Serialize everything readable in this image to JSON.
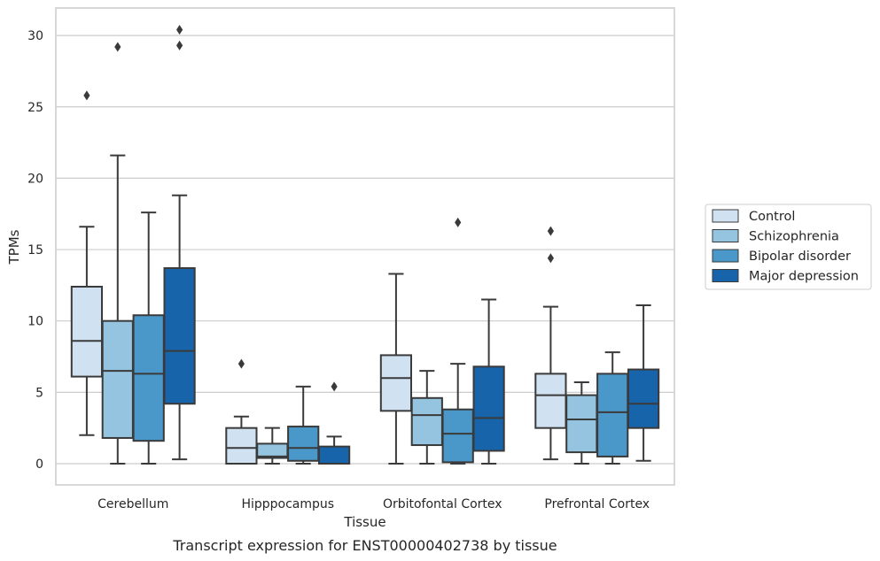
{
  "chart_data": {
    "type": "box",
    "xlabel": "Tissue",
    "ylabel": "TPMs",
    "caption": "Transcript expression for ENST00000402738 by tissue",
    "ylim": [
      -1.5,
      32
    ],
    "yticks": [
      0,
      5,
      10,
      15,
      20,
      25,
      30
    ],
    "grid": "horizontal",
    "legend_position": "right",
    "categories": [
      "Cerebellum",
      "Hipppocampus",
      "Orbitofontal Cortex",
      "Prefrontal Cortex"
    ],
    "series": [
      {
        "name": "Control",
        "color": "#d0e1f2",
        "boxes": [
          {
            "whislo": 2.0,
            "q1": 6.1,
            "med": 8.6,
            "q3": 12.4,
            "whishi": 16.6,
            "fliers": [
              25.8
            ]
          },
          {
            "whislo": 0.0,
            "q1": 0.0,
            "med": 1.1,
            "q3": 2.5,
            "whishi": 3.3,
            "fliers": [
              7.0
            ]
          },
          {
            "whislo": 0.0,
            "q1": 3.7,
            "med": 6.0,
            "q3": 7.6,
            "whishi": 13.3,
            "fliers": []
          },
          {
            "whislo": 0.3,
            "q1": 2.5,
            "med": 4.8,
            "q3": 6.3,
            "whishi": 11.0,
            "fliers": [
              14.4,
              16.3
            ]
          }
        ]
      },
      {
        "name": "Schizophrenia",
        "color": "#94c4df",
        "boxes": [
          {
            "whislo": 0.0,
            "q1": 1.8,
            "med": 6.5,
            "q3": 10.0,
            "whishi": 21.6,
            "fliers": [
              29.2
            ]
          },
          {
            "whislo": 0.0,
            "q1": 0.4,
            "med": 0.5,
            "q3": 1.4,
            "whishi": 2.5,
            "fliers": []
          },
          {
            "whislo": 0.0,
            "q1": 1.3,
            "med": 3.4,
            "q3": 4.6,
            "whishi": 6.5,
            "fliers": []
          },
          {
            "whislo": 0.0,
            "q1": 0.8,
            "med": 3.1,
            "q3": 4.8,
            "whishi": 5.7,
            "fliers": []
          }
        ]
      },
      {
        "name": "Bipolar disorder",
        "color": "#4a98c9",
        "boxes": [
          {
            "whislo": 0.0,
            "q1": 1.6,
            "med": 6.3,
            "q3": 10.4,
            "whishi": 17.6,
            "fliers": []
          },
          {
            "whislo": 0.0,
            "q1": 0.2,
            "med": 1.1,
            "q3": 2.6,
            "whishi": 5.4,
            "fliers": []
          },
          {
            "whislo": 0.0,
            "q1": 0.1,
            "med": 2.1,
            "q3": 3.8,
            "whishi": 7.0,
            "fliers": [
              16.9
            ]
          },
          {
            "whislo": 0.0,
            "q1": 0.5,
            "med": 3.6,
            "q3": 6.3,
            "whishi": 7.8,
            "fliers": []
          }
        ]
      },
      {
        "name": "Major depression",
        "color": "#1764ab",
        "boxes": [
          {
            "whislo": 0.3,
            "q1": 4.2,
            "med": 7.9,
            "q3": 13.7,
            "whishi": 18.8,
            "fliers": [
              29.3,
              30.4
            ]
          },
          {
            "whislo": 0.0,
            "q1": 0.0,
            "med": 0.0,
            "q3": 1.2,
            "whishi": 1.9,
            "fliers": [
              5.4
            ]
          },
          {
            "whislo": 0.0,
            "q1": 0.9,
            "med": 3.2,
            "q3": 6.8,
            "whishi": 11.5,
            "fliers": []
          },
          {
            "whislo": 0.2,
            "q1": 2.5,
            "med": 4.2,
            "q3": 6.6,
            "whishi": 11.1,
            "fliers": []
          }
        ]
      }
    ]
  }
}
